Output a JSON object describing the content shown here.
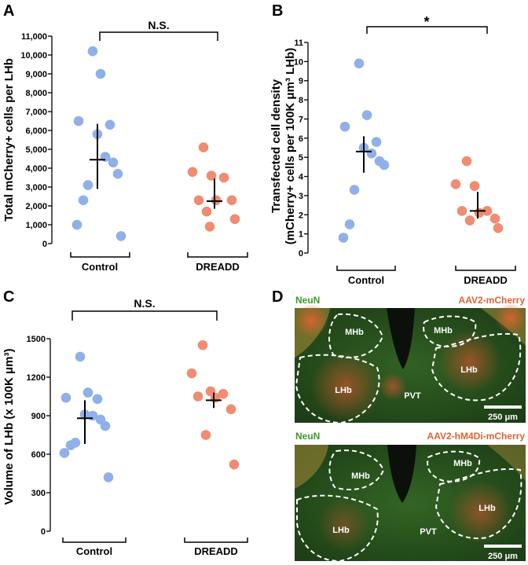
{
  "colors": {
    "control": "#8fb0e8",
    "dreadd": "#ef8c72",
    "ink": "#000000"
  },
  "chart_data": [
    {
      "panel": "A",
      "type": "scatter",
      "ylabel": "Total mCherry+ cells per LHb",
      "ylim": [
        0,
        11000
      ],
      "yticks": [
        "0",
        "1,000",
        "2,000",
        "3,000",
        "4,000",
        "5,000",
        "6,000",
        "7,000",
        "8,000",
        "9,000",
        "10,000",
        "11,000"
      ],
      "categories": [
        "Control",
        "DREADD"
      ],
      "series": [
        {
          "name": "Control",
          "values": [
            10200,
            9000,
            6500,
            6300,
            5800,
            4600,
            4300,
            3700,
            3100,
            2300,
            1000,
            400
          ],
          "mean": 4450,
          "err": [
            2900,
            6350
          ]
        },
        {
          "name": "DREADD",
          "values": [
            5100,
            3800,
            3600,
            3500,
            2300,
            2300,
            2300,
            1700,
            1300,
            900
          ],
          "mean": 2250,
          "err": [
            1850,
            3450
          ]
        }
      ],
      "significance": "N.S."
    },
    {
      "panel": "B",
      "type": "scatter",
      "ylabel": "Transfected cell density",
      "ylabel2": "(mCherry+ cells per 100K μm³ LHb)",
      "ylim": [
        0,
        11
      ],
      "yticks": [
        "0",
        "1",
        "2",
        "3",
        "4",
        "5",
        "6",
        "7",
        "8",
        "9",
        "10",
        "11"
      ],
      "categories": [
        "Control",
        "DREADD"
      ],
      "series": [
        {
          "name": "Control",
          "values": [
            9.9,
            7.2,
            6.6,
            5.8,
            5.5,
            5.2,
            4.8,
            4.6,
            3.3,
            1.5,
            0.8
          ],
          "mean": 5.3,
          "err": [
            4.2,
            6.1
          ]
        },
        {
          "name": "DREADD",
          "values": [
            4.8,
            3.6,
            3.5,
            2.2,
            2.2,
            2.1,
            1.8,
            1.7,
            1.3
          ],
          "mean": 2.2,
          "err": [
            1.8,
            3.2
          ]
        }
      ],
      "significance": "*"
    },
    {
      "panel": "C",
      "type": "scatter",
      "ylabel": "Volume of LHb (x 100K μm³)",
      "ylim": [
        0,
        1500
      ],
      "yticks": [
        "0",
        "300",
        "600",
        "900",
        "1200",
        "1500"
      ],
      "categories": [
        "Control",
        "DREADD"
      ],
      "series": [
        {
          "name": "Control",
          "values": [
            1360,
            1080,
            1040,
            1030,
            910,
            900,
            870,
            820,
            690,
            670,
            610,
            420
          ],
          "mean": 880,
          "err": [
            680,
            1020
          ]
        },
        {
          "name": "DREADD",
          "values": [
            1450,
            1230,
            1090,
            1070,
            1050,
            1040,
            950,
            750,
            520
          ],
          "mean": 1020,
          "err": [
            960,
            1080
          ]
        }
      ],
      "significance": "N.S."
    }
  ],
  "panel_d": {
    "label": "D",
    "top": {
      "stain": "NeuN",
      "virus": "AAV2-mCherry",
      "regions": [
        "MHb",
        "MHb",
        "LHb",
        "LHb",
        "PVT"
      ],
      "scale": "250 μm"
    },
    "bottom": {
      "stain": "NeuN",
      "virus": "AAV2-hM4Di-mCherry",
      "regions": [
        "MHb",
        "MHb",
        "LHb",
        "LHb",
        "PVT"
      ],
      "scale": "250 μm"
    }
  }
}
